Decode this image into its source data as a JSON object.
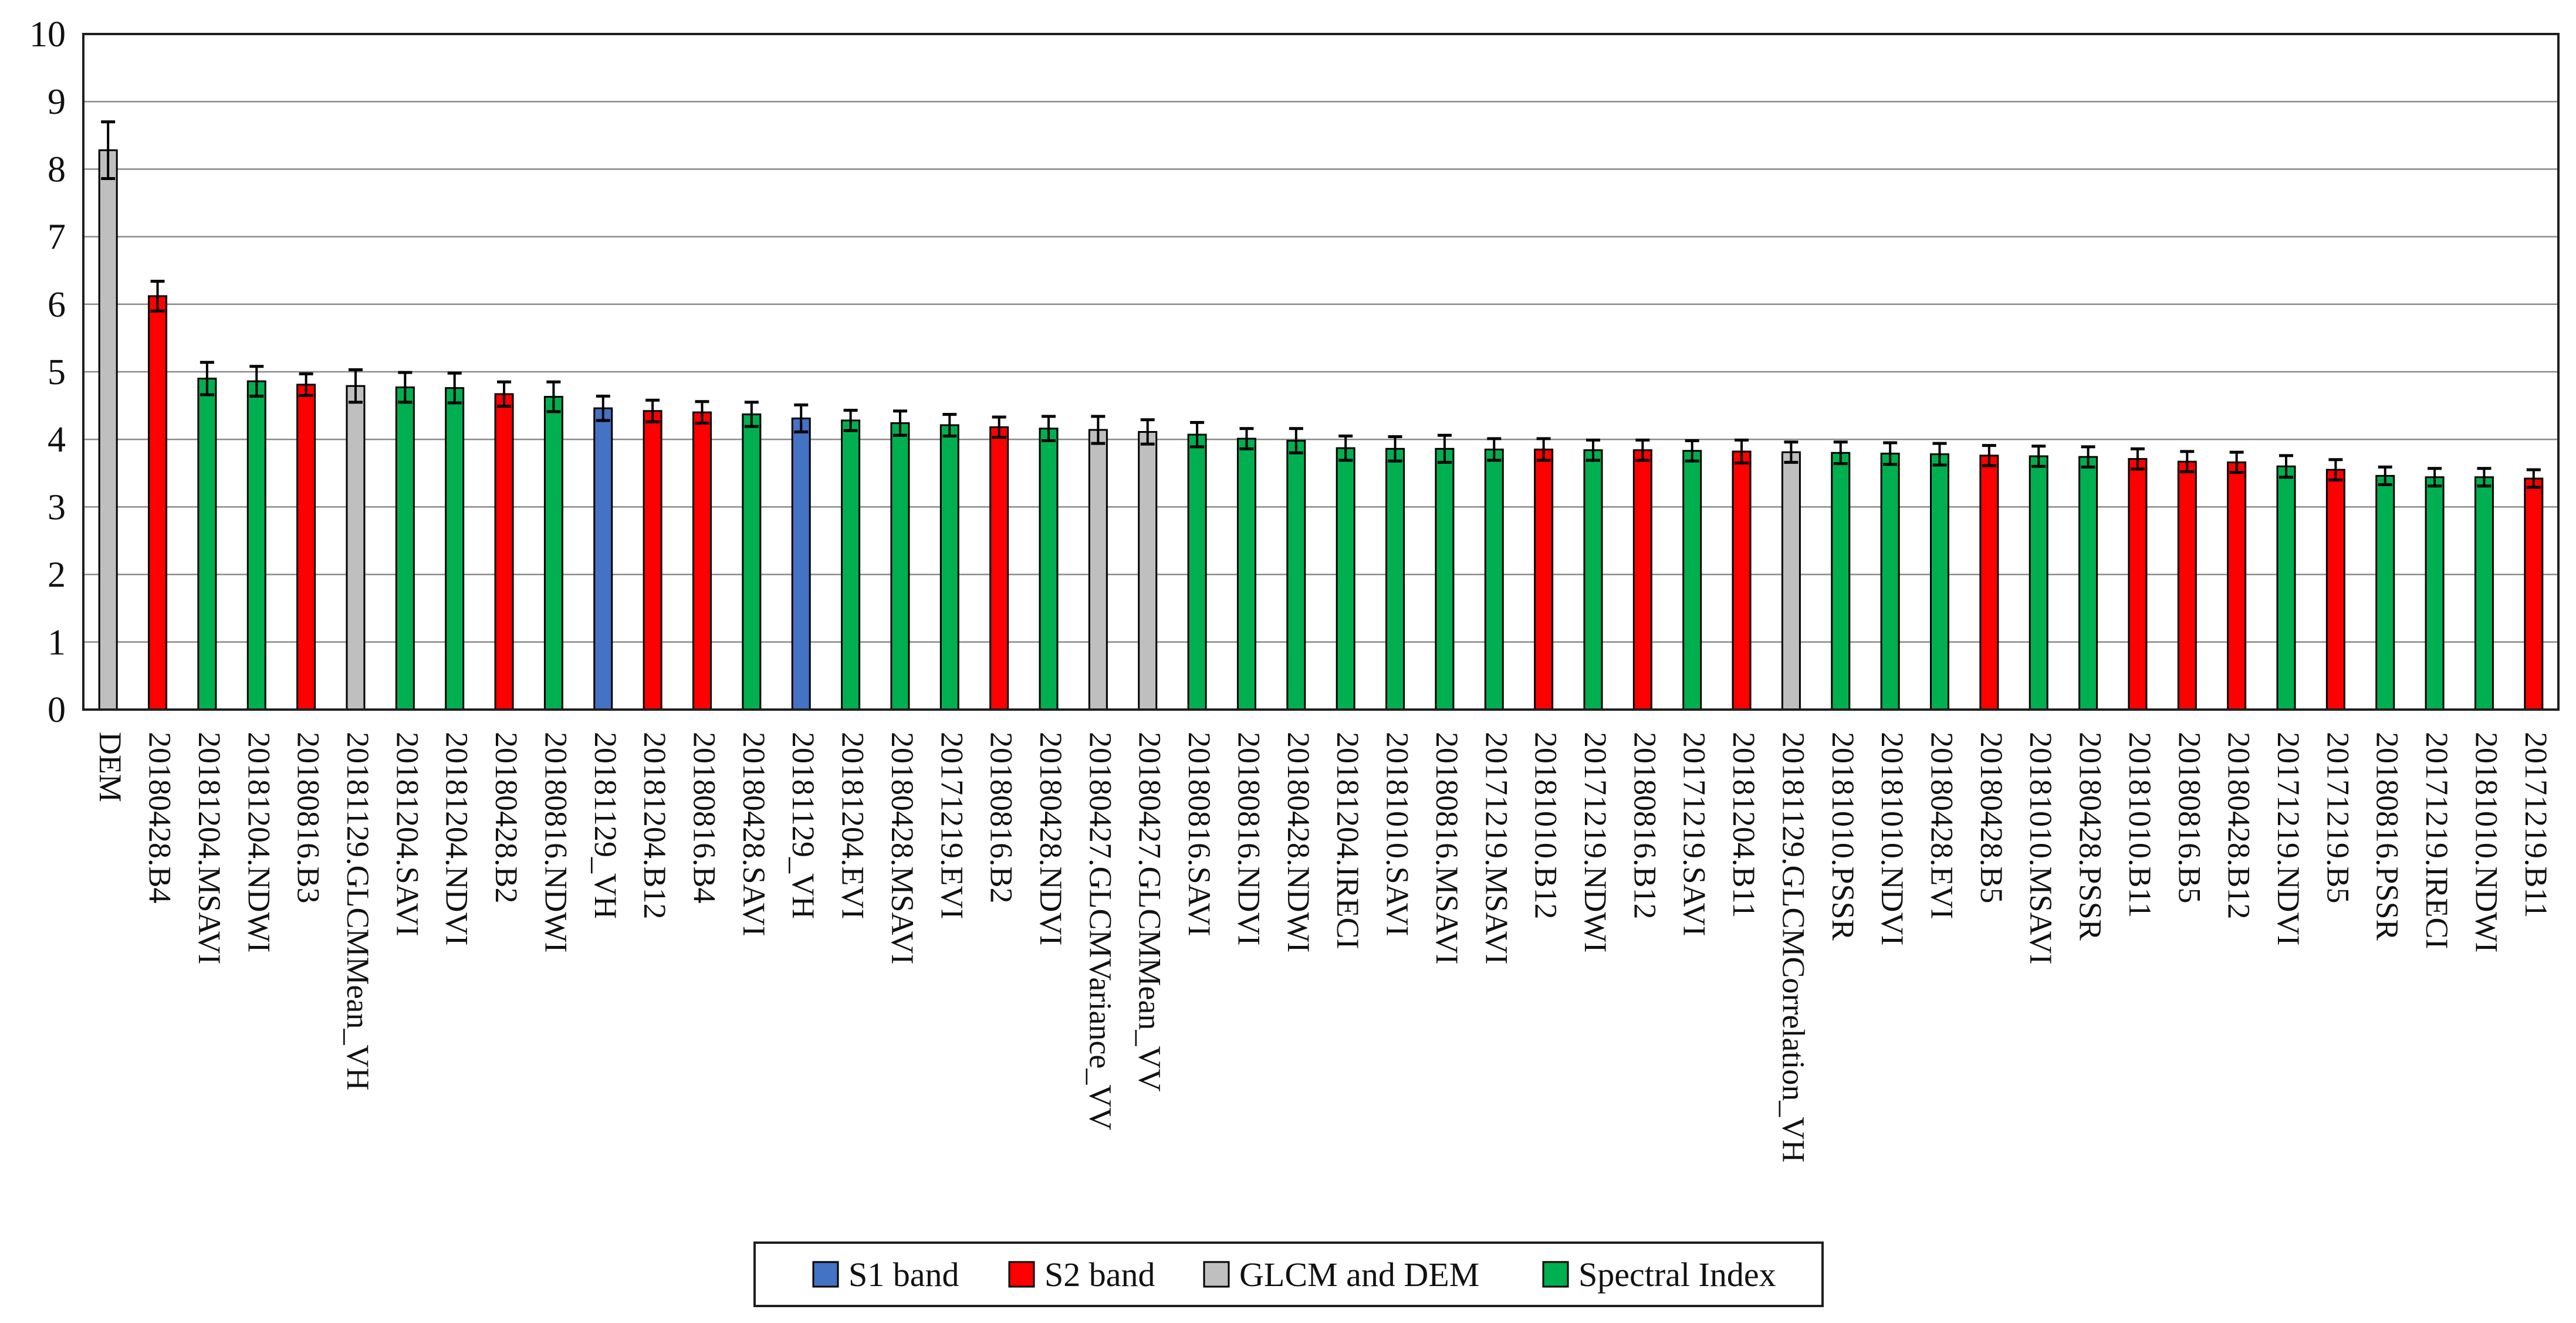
{
  "chart_data": {
    "type": "bar",
    "title": "",
    "xlabel": "",
    "ylabel": "",
    "ylim": [
      0,
      10
    ],
    "y_ticks": [
      0,
      1,
      2,
      3,
      4,
      5,
      6,
      7,
      8,
      9,
      10
    ],
    "grid": "horizontal",
    "legend_position": "bottom-center",
    "error_bars": true,
    "colors": {
      "plot_border": "#1f1f1f",
      "gridline": "#8a8a8a",
      "bar_outline": "#000000",
      "error_bar": "#000000",
      "legend_border": "#1f1f1f",
      "background": "#ffffff"
    },
    "groups": {
      "s1": {
        "label": "S1 band",
        "color": "#4472C4"
      },
      "s2": {
        "label": "S2 band",
        "color": "#FF0000"
      },
      "glcm_dem": {
        "label": "GLCM and DEM",
        "color": "#BFBFBF"
      },
      "spectral": {
        "label": "Spectral Index",
        "color": "#00B050"
      }
    },
    "legend_order": [
      "s1",
      "s2",
      "glcm_dem",
      "spectral"
    ],
    "bars": [
      {
        "label": "DEM",
        "value": 8.28,
        "error": 0.42,
        "group": "glcm_dem"
      },
      {
        "label": "20180428.B4",
        "value": 6.12,
        "error": 0.22,
        "group": "s2"
      },
      {
        "label": "20181204.MSAVI",
        "value": 4.9,
        "error": 0.24,
        "group": "spectral"
      },
      {
        "label": "20181204.NDWI",
        "value": 4.86,
        "error": 0.22,
        "group": "spectral"
      },
      {
        "label": "20180816.B3",
        "value": 4.81,
        "error": 0.16,
        "group": "s2"
      },
      {
        "label": "20181129.GLCMMean_VH",
        "value": 4.79,
        "error": 0.24,
        "group": "glcm_dem"
      },
      {
        "label": "20181204.SAVI",
        "value": 4.77,
        "error": 0.22,
        "group": "spectral"
      },
      {
        "label": "20181204.NDVI",
        "value": 4.76,
        "error": 0.22,
        "group": "spectral"
      },
      {
        "label": "20180428.B2",
        "value": 4.67,
        "error": 0.18,
        "group": "s2"
      },
      {
        "label": "20180816.NDWI",
        "value": 4.63,
        "error": 0.22,
        "group": "spectral"
      },
      {
        "label": "20181129_VH",
        "value": 4.46,
        "error": 0.18,
        "group": "s1"
      },
      {
        "label": "20181204.B12",
        "value": 4.42,
        "error": 0.16,
        "group": "s2"
      },
      {
        "label": "20180816.B4",
        "value": 4.4,
        "error": 0.16,
        "group": "s2"
      },
      {
        "label": "20180428.SAVI",
        "value": 4.37,
        "error": 0.18,
        "group": "spectral"
      },
      {
        "label": "20181129_VH",
        "value": 4.31,
        "error": 0.2,
        "group": "s1"
      },
      {
        "label": "20181204.EVI",
        "value": 4.28,
        "error": 0.15,
        "group": "spectral"
      },
      {
        "label": "20180428.MSAVI",
        "value": 4.24,
        "error": 0.18,
        "group": "spectral"
      },
      {
        "label": "20171219.EVI",
        "value": 4.21,
        "error": 0.16,
        "group": "spectral"
      },
      {
        "label": "20180816.B2",
        "value": 4.18,
        "error": 0.15,
        "group": "s2"
      },
      {
        "label": "20180428.NDVI",
        "value": 4.16,
        "error": 0.18,
        "group": "spectral"
      },
      {
        "label": "20180427.GLCMVariance_VV",
        "value": 4.14,
        "error": 0.2,
        "group": "glcm_dem"
      },
      {
        "label": "20180427.GLCMMean_VV",
        "value": 4.11,
        "error": 0.18,
        "group": "glcm_dem"
      },
      {
        "label": "20180816.SAVI",
        "value": 4.07,
        "error": 0.18,
        "group": "spectral"
      },
      {
        "label": "20180816.NDVI",
        "value": 4.01,
        "error": 0.15,
        "group": "spectral"
      },
      {
        "label": "20180428.NDWI",
        "value": 3.98,
        "error": 0.18,
        "group": "spectral"
      },
      {
        "label": "20181204.IRECI",
        "value": 3.87,
        "error": 0.18,
        "group": "spectral"
      },
      {
        "label": "20181010.SAVI",
        "value": 3.86,
        "error": 0.18,
        "group": "spectral"
      },
      {
        "label": "20180816.MSAVI",
        "value": 3.86,
        "error": 0.2,
        "group": "spectral"
      },
      {
        "label": "20171219.MSAVI",
        "value": 3.85,
        "error": 0.16,
        "group": "spectral"
      },
      {
        "label": "20181010.B12",
        "value": 3.85,
        "error": 0.16,
        "group": "s2"
      },
      {
        "label": "20171219.NDWI",
        "value": 3.84,
        "error": 0.15,
        "group": "spectral"
      },
      {
        "label": "20180816.B12",
        "value": 3.84,
        "error": 0.15,
        "group": "s2"
      },
      {
        "label": "20171219.SAVI",
        "value": 3.83,
        "error": 0.15,
        "group": "spectral"
      },
      {
        "label": "20181204.B11",
        "value": 3.82,
        "error": 0.17,
        "group": "s2"
      },
      {
        "label": "20181129.GLCMCorrelation_VH",
        "value": 3.81,
        "error": 0.15,
        "group": "glcm_dem"
      },
      {
        "label": "20181010.PSSR",
        "value": 3.8,
        "error": 0.16,
        "group": "spectral"
      },
      {
        "label": "20181010.NDVI",
        "value": 3.79,
        "error": 0.16,
        "group": "spectral"
      },
      {
        "label": "20180428.EVI",
        "value": 3.78,
        "error": 0.16,
        "group": "spectral"
      },
      {
        "label": "20180428.B5",
        "value": 3.76,
        "error": 0.15,
        "group": "s2"
      },
      {
        "label": "20181010.MSAVI",
        "value": 3.75,
        "error": 0.15,
        "group": "spectral"
      },
      {
        "label": "20180428.PSSR",
        "value": 3.74,
        "error": 0.15,
        "group": "spectral"
      },
      {
        "label": "20181010.B11",
        "value": 3.71,
        "error": 0.15,
        "group": "s2"
      },
      {
        "label": "20180816.B5",
        "value": 3.67,
        "error": 0.15,
        "group": "s2"
      },
      {
        "label": "20180428.B12",
        "value": 3.66,
        "error": 0.15,
        "group": "s2"
      },
      {
        "label": "20171219.NDVI",
        "value": 3.6,
        "error": 0.16,
        "group": "spectral"
      },
      {
        "label": "20171219.B5",
        "value": 3.55,
        "error": 0.15,
        "group": "s2"
      },
      {
        "label": "20180816.PSSR",
        "value": 3.46,
        "error": 0.13,
        "group": "spectral"
      },
      {
        "label": "20171219.IRECI",
        "value": 3.44,
        "error": 0.13,
        "group": "spectral"
      },
      {
        "label": "20181010.NDWI",
        "value": 3.44,
        "error": 0.13,
        "group": "spectral"
      },
      {
        "label": "20171219.B11",
        "value": 3.42,
        "error": 0.13,
        "group": "s2"
      }
    ]
  }
}
